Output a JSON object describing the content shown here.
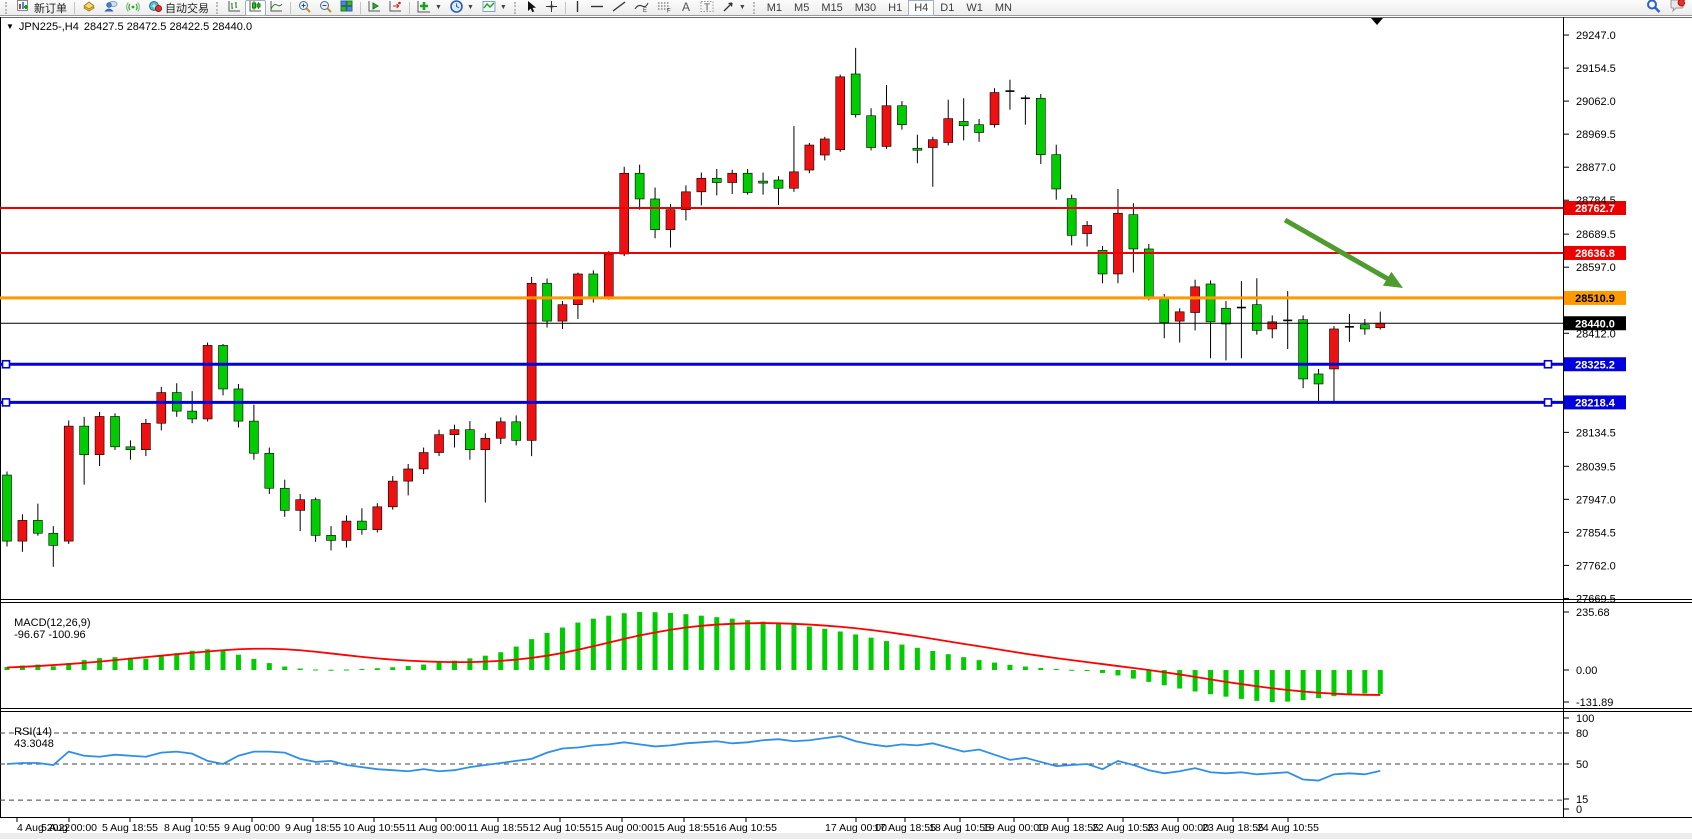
{
  "toolbar": {
    "new_order_label": "新订单",
    "autotrading_label": "自动交易",
    "timeframes": [
      "M1",
      "M5",
      "M15",
      "M30",
      "H1",
      "H4",
      "D1",
      "W1",
      "MN"
    ],
    "active_timeframe": "H4",
    "notifications_badge": "1"
  },
  "chart": {
    "symbol": "JPN225-,H4",
    "ohlc_line": "28427.5 28472.5 28422.5 28440.0",
    "macd_label": "MACD(12,26,9)",
    "macd_values": "-96.67 -100.96",
    "rsi_label": "RSI(14)",
    "rsi_value": "43.3048",
    "colors": {
      "bull": "#ee1111",
      "bear": "#00cc00",
      "wick": "#000000",
      "macd_histogram": "#00cc00",
      "macd_signal": "#ff0000",
      "rsi_line": "#2f8fe6",
      "arrow": "#4e9b2f",
      "level_red": "#ee0000",
      "level_orange": "#ff9900",
      "level_blue": "#0000dd",
      "level_black": "#000000"
    }
  },
  "chart_data": {
    "type": "candlestick",
    "symbol": "JPN225-",
    "timeframe": "H4",
    "convention": "red candles = bullish, green candles = bearish",
    "price_axis_ticks": [
      "29247.0",
      "29154.5",
      "29062.0",
      "28969.5",
      "28877.0",
      "28784.5",
      "28689.5",
      "28597.0",
      "28412.0",
      "28134.5",
      "28039.5",
      "27947.0",
      "27854.5",
      "27762.0",
      "27669.5"
    ],
    "price_range": [
      27665,
      29272
    ],
    "x_labels": [
      "4 Aug 2022",
      "5 Aug 00:00",
      "5 Aug 18:55",
      "8 Aug 10:55",
      "9 Aug 00:00",
      "9 Aug 18:55",
      "10 Aug 10:55",
      "11 Aug 00:00",
      "11 Aug 18:55",
      "12 Aug 10:55",
      "15 Aug 00:00",
      "15 Aug 18:55",
      "16 Aug 10:55",
      "17 Aug 00:00",
      "17 Aug 18:55",
      "18 Aug 10:55",
      "19 Aug 00:00",
      "19 Aug 18:55",
      "22 Aug 10:55",
      "23 Aug 00:00",
      "23 Aug 18:55",
      "24 Aug 10:55"
    ],
    "candles": [
      [
        28015,
        28025,
        27815,
        27830
      ],
      [
        27830,
        27905,
        27800,
        27888
      ],
      [
        27888,
        27935,
        27845,
        27852
      ],
      [
        27852,
        27872,
        27758,
        27818
      ],
      [
        27830,
        28168,
        27822,
        28152
      ],
      [
        28152,
        28178,
        27988,
        28072
      ],
      [
        28072,
        28192,
        28040,
        28179
      ],
      [
        28179,
        28188,
        28085,
        28094
      ],
      [
        28094,
        28112,
        28058,
        28086
      ],
      [
        28086,
        28172,
        28068,
        28160
      ],
      [
        28160,
        28262,
        28140,
        28246
      ],
      [
        28246,
        28272,
        28178,
        28194
      ],
      [
        28194,
        28250,
        28160,
        28172
      ],
      [
        28172,
        28386,
        28165,
        28378
      ],
      [
        28378,
        28382,
        28238,
        28256
      ],
      [
        28256,
        28270,
        28148,
        28166
      ],
      [
        28166,
        28212,
        28058,
        28076
      ],
      [
        28076,
        28092,
        27962,
        27978
      ],
      [
        27978,
        28002,
        27898,
        27916
      ],
      [
        27916,
        27962,
        27858,
        27946
      ],
      [
        27946,
        27952,
        27828,
        27846
      ],
      [
        27846,
        27872,
        27804,
        27832
      ],
      [
        27832,
        27902,
        27812,
        27886
      ],
      [
        27886,
        27922,
        27848,
        27862
      ],
      [
        27862,
        27936,
        27854,
        27926
      ],
      [
        27926,
        28012,
        27918,
        27998
      ],
      [
        27998,
        28046,
        27958,
        28032
      ],
      [
        28032,
        28092,
        28018,
        28078
      ],
      [
        28078,
        28142,
        28068,
        28128
      ],
      [
        28128,
        28156,
        28092,
        28142
      ],
      [
        28142,
        28166,
        28058,
        28086
      ],
      [
        28086,
        28132,
        27938,
        28118
      ],
      [
        28118,
        28176,
        28102,
        28164
      ],
      [
        28164,
        28182,
        28098,
        28112
      ],
      [
        28112,
        28570,
        28068,
        28552
      ],
      [
        28552,
        28565,
        28428,
        28446
      ],
      [
        28446,
        28502,
        28424,
        28492
      ],
      [
        28492,
        28582,
        28452,
        28578
      ],
      [
        28578,
        28588,
        28498,
        28512
      ],
      [
        28512,
        28642,
        28506,
        28634
      ],
      [
        28634,
        28878,
        28628,
        28860
      ],
      [
        28860,
        28884,
        28758,
        28788
      ],
      [
        28788,
        28820,
        28678,
        28702
      ],
      [
        28702,
        28774,
        28652,
        28758
      ],
      [
        28758,
        28826,
        28728,
        28808
      ],
      [
        28808,
        28862,
        28770,
        28846
      ],
      [
        28846,
        28872,
        28798,
        28834
      ],
      [
        28834,
        28870,
        28802,
        28860
      ],
      [
        28860,
        28872,
        28800,
        28806
      ],
      [
        28838,
        28862,
        28800,
        28833
      ],
      [
        28841,
        28852,
        28771,
        28818
      ],
      [
        28818,
        28992,
        28808,
        28864
      ],
      [
        28869,
        28945,
        28860,
        28939
      ],
      [
        28911,
        28962,
        28896,
        28956
      ],
      [
        28926,
        29136,
        28920,
        29130
      ],
      [
        29138,
        29211,
        29016,
        29024
      ],
      [
        29021,
        29042,
        28924,
        28932
      ],
      [
        28935,
        29107,
        28928,
        29049
      ],
      [
        29049,
        29062,
        28982,
        28996
      ],
      [
        28930,
        28968,
        28888,
        28926
      ],
      [
        28932,
        28962,
        28822,
        28954
      ],
      [
        28946,
        29066,
        28938,
        29013
      ],
      [
        29005,
        29070,
        28952,
        28993
      ],
      [
        28996,
        29012,
        28948,
        28974
      ],
      [
        28996,
        29098,
        28988,
        29086
      ],
      [
        29090,
        29122,
        29038,
        29090
      ],
      [
        29070,
        29078,
        28996,
        29070
      ],
      [
        29070,
        29082,
        28886,
        28912
      ],
      [
        28912,
        28940,
        28786,
        28816
      ],
      [
        28789,
        28800,
        28658,
        28686
      ],
      [
        28691,
        28726,
        28655,
        28714
      ],
      [
        28644,
        28656,
        28552,
        28578
      ],
      [
        28578,
        28816,
        28552,
        28748
      ],
      [
        28744,
        28776,
        28582,
        28648
      ],
      [
        28648,
        28662,
        28504,
        28512
      ],
      [
        28508,
        28522,
        28398,
        28442
      ],
      [
        28446,
        28482,
        28386,
        28472
      ],
      [
        28470,
        28562,
        28420,
        28542
      ],
      [
        28550,
        28560,
        28342,
        28444
      ],
      [
        28482,
        28502,
        28336,
        28438
      ],
      [
        28484,
        28558,
        28342,
        28484
      ],
      [
        28492,
        28566,
        28408,
        28420
      ],
      [
        28424,
        28462,
        28398,
        28444
      ],
      [
        28448,
        28530,
        28368,
        28448
      ],
      [
        28450,
        28462,
        28258,
        28284
      ],
      [
        28298,
        28312,
        28222,
        28270
      ],
      [
        28312,
        28432,
        28218,
        28424
      ],
      [
        28430,
        28466,
        28388,
        28430
      ],
      [
        28436,
        28452,
        28408,
        28424
      ],
      [
        28427.5,
        28472.5,
        28422.5,
        28440.0
      ]
    ],
    "last_bar": {
      "open": 28427.5,
      "high": 28472.5,
      "low": 28422.5,
      "close": 28440.0
    },
    "levels": [
      {
        "price": 28762.7,
        "label": "28762.7",
        "color": "#ee0000",
        "text_color": "#ffffff",
        "width": 2,
        "handles": false
      },
      {
        "price": 28636.8,
        "label": "28636.8",
        "color": "#ee0000",
        "text_color": "#ffffff",
        "width": 2,
        "handles": false
      },
      {
        "price": 28510.9,
        "label": "28510.9",
        "color": "#ff9900",
        "text_color": "#000000",
        "width": 3,
        "handles": false
      },
      {
        "price": 28440.0,
        "label": "28440.0",
        "color": "#000000",
        "text_color": "#ffffff",
        "width": 1,
        "handles": false
      },
      {
        "price": 28325.2,
        "label": "28325.2",
        "color": "#0000dd",
        "text_color": "#ffffff",
        "width": 3,
        "handles": true
      },
      {
        "price": 28218.4,
        "label": "28218.4",
        "color": "#0000dd",
        "text_color": "#ffffff",
        "width": 3,
        "handles": true
      }
    ],
    "macd": {
      "title": "MACD(12,26,9)",
      "current_values": "-96.67 -100.96",
      "axis_ticks": [
        "235.68",
        "0.00",
        "-131.89"
      ],
      "range": [
        -154,
        275
      ],
      "histogram": [
        12,
        18,
        22,
        15,
        28,
        40,
        48,
        52,
        50,
        46,
        55,
        68,
        78,
        84,
        80,
        62,
        45,
        28,
        14,
        6,
        2,
        1,
        2,
        4,
        7,
        11,
        16,
        22,
        30,
        38,
        47,
        58,
        72,
        95,
        125,
        150,
        172,
        192,
        208,
        220,
        230,
        235,
        234,
        231,
        226,
        220,
        214,
        208,
        202,
        196,
        190,
        184,
        176,
        167,
        156,
        144,
        131,
        117,
        103,
        90,
        77,
        64,
        52,
        40,
        30,
        21,
        14,
        8,
        4,
        1,
        -4,
        -12,
        -22,
        -35,
        -48,
        -62,
        -75,
        -87,
        -98,
        -108,
        -117,
        -125,
        -130,
        -128,
        -122,
        -114,
        -106,
        -99,
        -95,
        -96.67
      ],
      "signal": [
        10,
        13,
        16,
        20,
        24,
        29,
        34,
        40,
        46,
        52,
        58,
        64,
        70,
        75,
        80,
        84,
        86,
        86,
        84,
        80,
        74,
        67,
        60,
        53,
        47,
        42,
        38,
        35,
        33,
        32,
        32,
        34,
        37,
        42,
        49,
        58,
        69,
        82,
        96,
        111,
        126,
        140,
        152,
        163,
        172,
        179,
        184,
        187,
        189,
        190,
        189,
        187,
        184,
        180,
        175,
        169,
        162,
        154,
        145,
        136,
        126,
        116,
        106,
        96,
        86,
        76,
        66,
        57,
        48,
        40,
        32,
        24,
        16,
        8,
        0,
        -9,
        -18,
        -28,
        -38,
        -48,
        -57,
        -66,
        -74,
        -81,
        -87,
        -92,
        -96,
        -99,
        -100.5,
        -100.96
      ]
    },
    "rsi": {
      "title": "RSI(14)",
      "current_value": "43.3048",
      "axis_ticks": [
        "100",
        "80",
        "50",
        "15",
        "0"
      ],
      "dashed_levels": [
        80,
        50,
        15
      ],
      "range": [
        0,
        100
      ],
      "values": [
        50,
        51,
        51,
        49,
        62,
        58,
        57,
        59,
        58,
        57,
        61,
        62,
        60,
        53,
        50,
        58,
        62,
        62,
        61,
        55,
        52,
        53,
        49,
        47,
        45,
        44,
        43,
        45,
        43,
        44,
        47,
        49,
        51,
        53,
        55,
        61,
        65,
        66,
        68,
        69,
        71,
        69,
        67,
        68,
        70,
        71,
        72,
        70,
        71,
        73,
        74,
        72,
        73,
        75,
        77,
        72,
        69,
        67,
        69,
        68,
        70,
        66,
        62,
        64,
        59,
        54,
        56,
        52,
        48,
        49,
        50,
        45,
        53,
        49,
        44,
        41,
        43,
        46,
        42,
        41,
        42,
        40,
        41,
        42,
        35,
        34,
        40,
        41,
        40,
        43.3
      ]
    },
    "annotation_arrow": {
      "from": [
        1285,
        220
      ],
      "to": [
        1403,
        288
      ],
      "color": "#4e9b2f"
    }
  }
}
